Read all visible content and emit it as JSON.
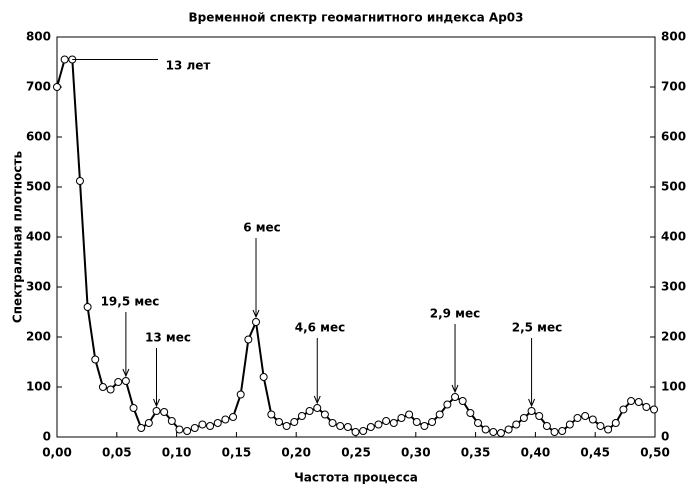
{
  "chart_data": {
    "type": "line",
    "title": "Временной спектр геомагнитного индекса Ap03",
    "xlabel": "Частота процесса",
    "ylabel": "Спектральная плотность",
    "color": "#000000",
    "x": [
      0,
      0.0064,
      0.0128,
      0.0192,
      0.0256,
      0.032,
      0.0384,
      0.0448,
      0.0512,
      0.0576,
      0.064,
      0.0704,
      0.0768,
      0.0832,
      0.0896,
      0.096,
      0.1024,
      0.1088,
      0.1152,
      0.1216,
      0.128,
      0.1344,
      0.1408,
      0.1472,
      0.1536,
      0.16,
      0.1664,
      0.1728,
      0.1792,
      0.1856,
      0.192,
      0.1984,
      0.2048,
      0.2112,
      0.2176,
      0.224,
      0.2304,
      0.2368,
      0.2432,
      0.2496,
      0.256,
      0.2624,
      0.2688,
      0.2752,
      0.2816,
      0.288,
      0.2944,
      0.3008,
      0.3072,
      0.3136,
      0.32,
      0.3264,
      0.3328,
      0.3392,
      0.3456,
      0.352,
      0.3584,
      0.3648,
      0.3712,
      0.3776,
      0.384,
      0.3904,
      0.3968,
      0.4032,
      0.4096,
      0.416,
      0.4224,
      0.4288,
      0.4352,
      0.4416,
      0.448,
      0.4544,
      0.4608,
      0.4672,
      0.4736,
      0.48,
      0.4864,
      0.4928,
      0.4992
    ],
    "values": [
      700,
      755,
      755,
      512,
      260,
      155,
      100,
      95,
      110,
      112,
      58,
      18,
      28,
      52,
      50,
      32,
      15,
      12,
      18,
      25,
      22,
      28,
      35,
      40,
      85,
      195,
      230,
      120,
      45,
      30,
      22,
      30,
      42,
      52,
      58,
      45,
      28,
      22,
      20,
      10,
      12,
      20,
      25,
      32,
      28,
      38,
      45,
      30,
      22,
      30,
      45,
      65,
      80,
      72,
      48,
      28,
      15,
      10,
      8,
      15,
      25,
      38,
      52,
      42,
      22,
      10,
      12,
      25,
      38,
      42,
      35,
      22,
      15,
      28,
      55,
      72,
      70,
      60,
      55
    ],
    "annotations": [
      "13 лет",
      "19,5 мес",
      "13 мес",
      "6 мес",
      "4,6 мес",
      "2,9 мес",
      "2,5 мес"
    ],
    "xlim": [
      0,
      0.5
    ],
    "ylim": [
      0,
      800
    ],
    "xticks": [
      {
        "value": 0,
        "label": "0,00"
      },
      {
        "value": 0.05,
        "label": "0,05"
      },
      {
        "value": 0.1,
        "label": "0,10"
      },
      {
        "value": 0.15,
        "label": "0,15"
      },
      {
        "value": 0.2,
        "label": "0,20"
      },
      {
        "value": 0.25,
        "label": "0,25"
      },
      {
        "value": 0.3,
        "label": "0,30"
      },
      {
        "value": 0.35,
        "label": "0,35"
      },
      {
        "value": 0.4,
        "label": "0,40"
      },
      {
        "value": 0.45,
        "label": "0,45"
      },
      {
        "value": 0.5,
        "label": "0,50"
      }
    ],
    "yticks": [
      0,
      100,
      200,
      300,
      400,
      500,
      600,
      700,
      800
    ]
  }
}
